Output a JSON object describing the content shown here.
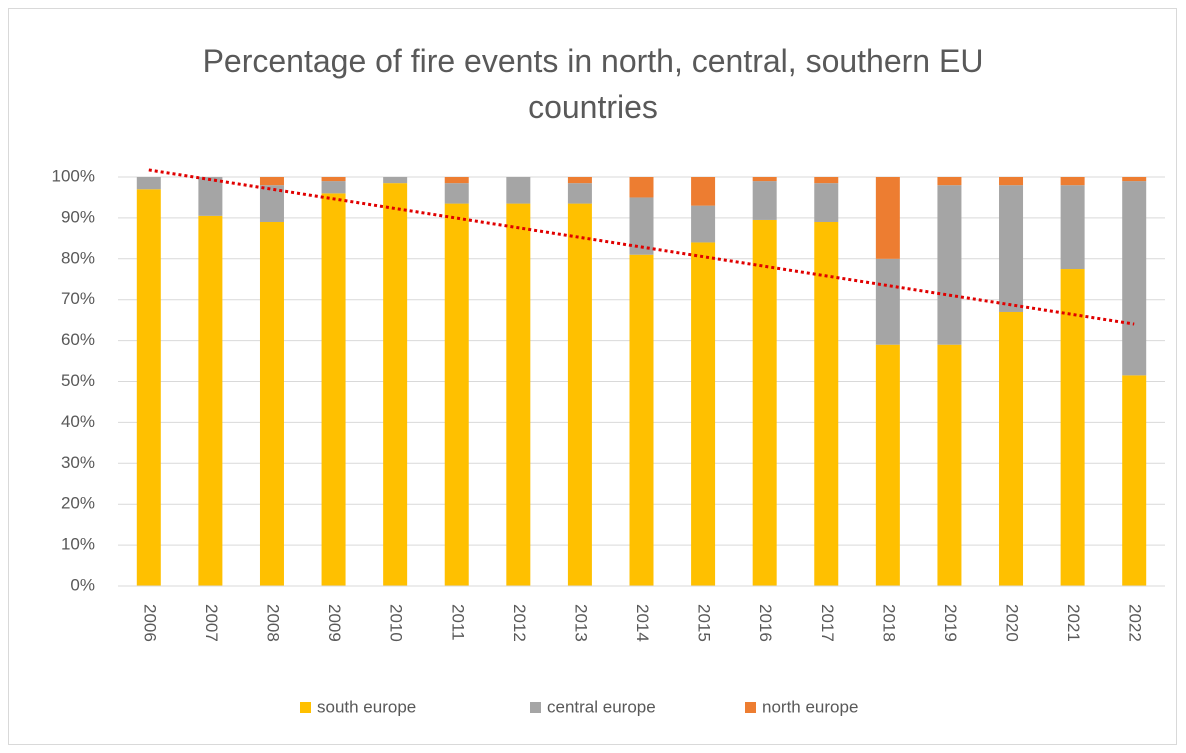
{
  "chart_data": {
    "type": "stacked_bar",
    "title": "Percentage of fire events in north, central, southern EU countries",
    "categories": [
      "2006",
      "2007",
      "2008",
      "2009",
      "2010",
      "2011",
      "2012",
      "2013",
      "2014",
      "2015",
      "2016",
      "2017",
      "2018",
      "2019",
      "2020",
      "2021",
      "2022"
    ],
    "series": [
      {
        "name": "south europe",
        "color": "#ffc000",
        "values": [
          97,
          90.5,
          89,
          96,
          98.5,
          93.5,
          93.5,
          93.5,
          81,
          84,
          89.5,
          89,
          59,
          59,
          67,
          77.5,
          51.5
        ]
      },
      {
        "name": "central europe",
        "color": "#a5a5a5",
        "values": [
          3,
          9.5,
          9,
          3,
          1.5,
          5,
          6.5,
          5,
          14,
          9,
          9.5,
          9.5,
          21,
          39,
          31,
          20.5,
          47.5
        ]
      },
      {
        "name": "north europe",
        "color": "#ed7d31",
        "values": [
          0,
          0,
          2,
          1,
          0,
          1.5,
          0,
          1.5,
          5,
          7,
          1,
          1.5,
          20,
          2,
          2,
          2,
          1
        ]
      }
    ],
    "ylim": [
      0,
      100
    ],
    "yticks": [
      {
        "value": 0,
        "label": "0%"
      },
      {
        "value": 10,
        "label": "10%"
      },
      {
        "value": 20,
        "label": "20%"
      },
      {
        "value": 30,
        "label": "30%"
      },
      {
        "value": 40,
        "label": "40%"
      },
      {
        "value": 50,
        "label": "50%"
      },
      {
        "value": 60,
        "label": "60%"
      },
      {
        "value": 70,
        "label": "70%"
      },
      {
        "value": 80,
        "label": "80%"
      },
      {
        "value": 90,
        "label": "90%"
      },
      {
        "value": 100,
        "label": "100%"
      }
    ],
    "grid": true,
    "legend": "bottom",
    "trendline": {
      "series": 0,
      "color": "#e00000"
    }
  }
}
